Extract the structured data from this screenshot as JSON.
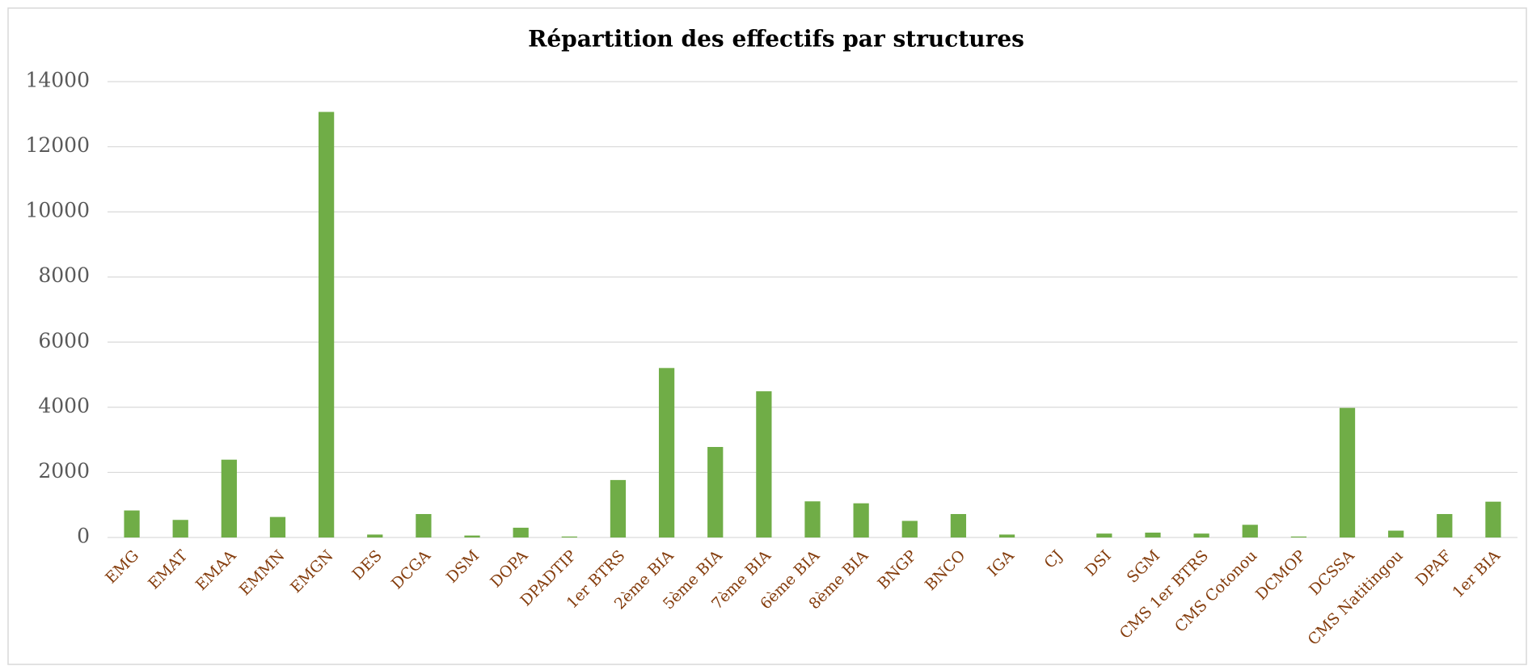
{
  "chart_data": {
    "type": "bar",
    "title": "Répartition des effectifs par structures",
    "categories": [
      "EMG",
      "EMAT",
      "EMAA",
      "EMMN",
      "EMGN",
      "DES",
      "DCGA",
      "DSM",
      "DOPA",
      "DPADTIP",
      "1er BTRS",
      "2ème BIA",
      "5ème BIA",
      "7ème BIA",
      "6ème BIA",
      "8ème BIA",
      "BNGP",
      "BNCO",
      "IGA",
      "CJ",
      "DSI",
      "SGM",
      "CMS 1er BTRS",
      "CMS Cotonou",
      "DCMOP",
      "DCSSA",
      "CMS Natitingou",
      "DPAF",
      "1er BIA"
    ],
    "values": [
      830,
      540,
      2390,
      630,
      13070,
      90,
      720,
      60,
      300,
      30,
      1765,
      5205,
      2780,
      4490,
      1110,
      1050,
      510,
      720,
      90,
      0,
      120,
      150,
      120,
      390,
      30,
      3980,
      210,
      720,
      1100
    ],
    "color": "#70ad47",
    "category_label_color": "#843c0c",
    "ylim": [
      0,
      14000
    ],
    "yticks": [
      0,
      2000,
      4000,
      6000,
      8000,
      10000,
      12000,
      14000
    ],
    "grid": true
  }
}
